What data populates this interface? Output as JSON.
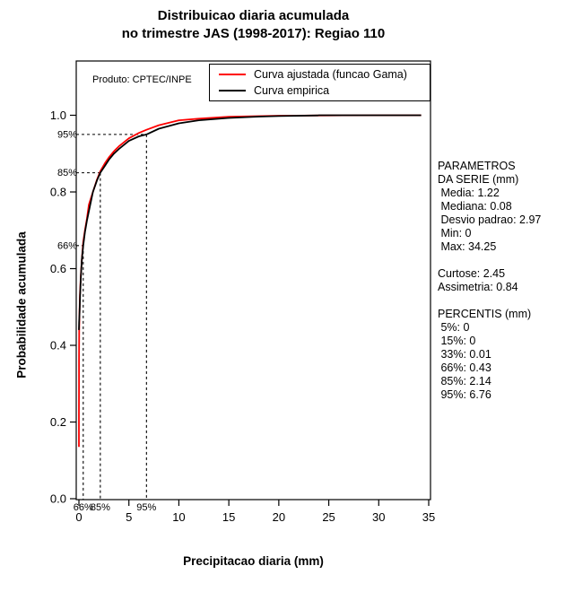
{
  "title": {
    "line1": "Distribuicao diaria acumulada",
    "line2": "no trimestre JAS (1998-2017): Regiao 110"
  },
  "product_label": "Produto: CPTEC/INPE",
  "legend": {
    "items": [
      {
        "label": "Curva ajustada (funcao Gama)",
        "color": "#ff0000"
      },
      {
        "label": "Curva empirica",
        "color": "#000000"
      }
    ]
  },
  "stats_panel": {
    "lines": [
      "PARAMETROS",
      "DA SERIE (mm)",
      " Media: 1.22",
      " Mediana: 0.08",
      " Desvio padrao: 2.97",
      " Min: 0",
      " Max: 34.25",
      "",
      "Curtose: 2.45",
      "Assimetria: 0.84",
      "",
      "PERCENTIS (mm)",
      " 5%: 0",
      " 15%: 0",
      " 33%: 0.01",
      " 66%: 0.43",
      " 85%: 2.14",
      " 95%: 6.76"
    ]
  },
  "chart_data": {
    "type": "line",
    "title": "Distribuicao diaria acumulada no trimestre JAS (1998-2017): Regiao 110",
    "xlabel": "Precipitacao diaria (mm)",
    "ylabel": "Probabilidade acumulada",
    "xlim": [
      0,
      35
    ],
    "ylim": [
      0,
      1
    ],
    "x_ticks": [
      0,
      5,
      10,
      15,
      20,
      25,
      30,
      35
    ],
    "y_ticks": [
      "0.0",
      "0.2",
      "0.4",
      "0.6",
      "0.8",
      "1.0"
    ],
    "grid": false,
    "legend_position": "top-right-inside",
    "percentile_guides": [
      {
        "label": "95%",
        "x": 6.76,
        "p": 0.95
      },
      {
        "label": "85%",
        "x": 2.14,
        "p": 0.85
      },
      {
        "label": "66%",
        "x": 0.43,
        "p": 0.66
      }
    ],
    "series": [
      {
        "id": "fitted",
        "name": "Curva ajustada (funcao Gama)",
        "color": "#ff0000",
        "points": [
          [
            0.0008,
            0.135
          ],
          [
            0.002,
            0.22
          ],
          [
            0.005,
            0.295
          ],
          [
            0.01,
            0.36
          ],
          [
            0.03,
            0.44
          ],
          [
            0.06,
            0.49
          ],
          [
            0.1,
            0.53
          ],
          [
            0.2,
            0.585
          ],
          [
            0.3,
            0.625
          ],
          [
            0.43,
            0.67
          ],
          [
            0.6,
            0.7
          ],
          [
            0.8,
            0.73
          ],
          [
            1,
            0.767
          ],
          [
            1.4,
            0.8
          ],
          [
            1.8,
            0.832
          ],
          [
            2.14,
            0.854
          ],
          [
            2.6,
            0.875
          ],
          [
            3,
            0.89
          ],
          [
            3.5,
            0.906
          ],
          [
            4,
            0.919
          ],
          [
            5,
            0.94
          ],
          [
            6,
            0.954
          ],
          [
            6.76,
            0.962
          ],
          [
            8,
            0.974
          ],
          [
            10,
            0.987
          ],
          [
            12,
            0.991
          ],
          [
            15,
            0.996
          ],
          [
            20,
            0.9988
          ],
          [
            25,
            0.9996
          ],
          [
            30,
            0.9999
          ],
          [
            34.25,
            1.0
          ]
        ]
      },
      {
        "id": "empirical",
        "name": "Curva empirica",
        "color": "#000000",
        "points": [
          [
            0,
            0.44
          ],
          [
            0.02,
            0.46
          ],
          [
            0.05,
            0.48
          ],
          [
            0.08,
            0.5
          ],
          [
            0.12,
            0.53
          ],
          [
            0.2,
            0.58
          ],
          [
            0.3,
            0.625
          ],
          [
            0.43,
            0.66
          ],
          [
            0.6,
            0.695
          ],
          [
            0.8,
            0.725
          ],
          [
            1,
            0.75
          ],
          [
            1.4,
            0.8
          ],
          [
            1.8,
            0.83
          ],
          [
            2.14,
            0.85
          ],
          [
            2.6,
            0.868
          ],
          [
            3,
            0.884
          ],
          [
            3.5,
            0.9
          ],
          [
            4,
            0.912
          ],
          [
            5,
            0.933
          ],
          [
            6,
            0.945
          ],
          [
            6.76,
            0.95
          ],
          [
            8,
            0.965
          ],
          [
            10,
            0.979
          ],
          [
            12,
            0.987
          ],
          [
            15,
            0.993
          ],
          [
            18,
            0.9965
          ],
          [
            20,
            0.998
          ],
          [
            23.9,
            0.9995
          ],
          [
            24,
            1.0
          ],
          [
            34.25,
            1.0
          ]
        ]
      }
    ]
  }
}
